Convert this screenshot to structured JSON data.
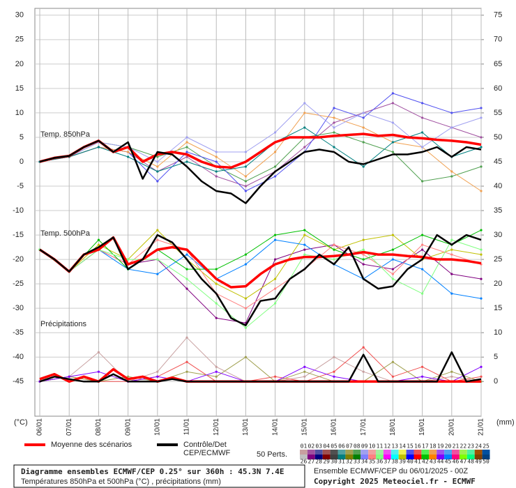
{
  "chart_data": {
    "type": "line",
    "x": [
      0,
      12,
      24,
      36,
      48,
      60,
      72,
      84,
      96,
      108,
      120,
      132,
      144,
      156,
      168,
      180,
      192,
      204,
      216,
      228,
      240,
      252,
      264,
      276,
      288,
      300,
      312,
      324,
      336,
      348,
      360
    ],
    "pert_x": [
      0,
      24,
      48,
      72,
      96,
      120,
      144,
      168,
      192,
      216,
      240,
      264,
      288,
      312,
      336,
      360
    ],
    "xlim": [
      -4,
      360
    ],
    "xticks": [
      {
        "value": 0,
        "label": "06/01"
      },
      {
        "value": 24,
        "label": "07/01"
      },
      {
        "value": 48,
        "label": "08/01"
      },
      {
        "value": 72,
        "label": "09/01"
      },
      {
        "value": 96,
        "label": "10/01"
      },
      {
        "value": 120,
        "label": "11/01"
      },
      {
        "value": 144,
        "label": "12/01"
      },
      {
        "value": 168,
        "label": "13/01"
      },
      {
        "value": 192,
        "label": "14/01"
      },
      {
        "value": 216,
        "label": "15/01"
      },
      {
        "value": 240,
        "label": "16/01"
      },
      {
        "value": 264,
        "label": "17/01"
      },
      {
        "value": 288,
        "label": "18/01"
      },
      {
        "value": 312,
        "label": "19/01"
      },
      {
        "value": 336,
        "label": "20/01"
      },
      {
        "value": 360,
        "label": "21/01"
      }
    ],
    "ylim": [
      -52.1,
      31.4
    ],
    "yticks": [
      -45,
      -40,
      -35,
      -30,
      -25,
      -20,
      -15,
      -10,
      -5,
      0,
      5,
      10,
      15,
      20,
      25,
      30
    ],
    "y2lim": [
      -7.1,
      76.4
    ],
    "y2ticks": [
      0,
      5,
      10,
      15,
      20,
      25,
      30,
      35,
      40,
      45,
      50,
      55,
      60,
      65,
      70,
      75
    ],
    "ylabel": "(°C)",
    "y2label": "(mm)",
    "grid": true,
    "mean_label": "Moyenne des scénarios",
    "mean_color": "#ff0000",
    "control_label": [
      "Contrôle/Det",
      "CEP/ECMWF"
    ],
    "control_color": "#000000",
    "perts_label": "50 Perts.",
    "perts": [
      {
        "label": "01",
        "color": "#c8a0a0"
      },
      {
        "label": "02",
        "color": "#a050a0"
      },
      {
        "label": "03",
        "color": "#5050a0"
      },
      {
        "label": "04",
        "color": "#a05050"
      },
      {
        "label": "05",
        "color": "#505050"
      },
      {
        "label": "06",
        "color": "#50a0a0"
      },
      {
        "label": "07",
        "color": "#a0a050"
      },
      {
        "label": "08",
        "color": "#50a050"
      },
      {
        "label": "09",
        "color": "#a0a0f0"
      },
      {
        "label": "10",
        "color": "#f0a0a0"
      },
      {
        "label": "11",
        "color": "#a0f0a0"
      },
      {
        "label": "12",
        "color": "#f050f0"
      },
      {
        "label": "13",
        "color": "#50f0f0"
      },
      {
        "label": "14",
        "color": "#f0f050"
      },
      {
        "label": "15",
        "color": "#5050f0"
      },
      {
        "label": "16",
        "color": "#f05050"
      },
      {
        "label": "17",
        "color": "#50f050"
      },
      {
        "label": "18",
        "color": "#f0a050"
      },
      {
        "label": "19",
        "color": "#a050f0"
      },
      {
        "label": "20",
        "color": "#50a0f0"
      },
      {
        "label": "21",
        "color": "#f050a0"
      },
      {
        "label": "22",
        "color": "#a0f050"
      },
      {
        "label": "23",
        "color": "#50f0a0"
      },
      {
        "label": "24",
        "color": "#a05000"
      },
      {
        "label": "25",
        "color": "#0050a0"
      },
      {
        "label": "26",
        "color": "#c0c0c0"
      },
      {
        "label": "27",
        "color": "#800080"
      },
      {
        "label": "28",
        "color": "#000080"
      },
      {
        "label": "29",
        "color": "#800000"
      },
      {
        "label": "30",
        "color": "#404040"
      },
      {
        "label": "31",
        "color": "#008080"
      },
      {
        "label": "32",
        "color": "#808000"
      },
      {
        "label": "33",
        "color": "#008000"
      },
      {
        "label": "34",
        "color": "#8080ff"
      },
      {
        "label": "35",
        "color": "#ff8080"
      },
      {
        "label": "36",
        "color": "#80ff80"
      },
      {
        "label": "37",
        "color": "#ff00ff"
      },
      {
        "label": "38",
        "color": "#00ffff"
      },
      {
        "label": "39",
        "color": "#c0c000"
      },
      {
        "label": "40",
        "color": "#0000ff"
      },
      {
        "label": "41",
        "color": "#ff0000"
      },
      {
        "label": "42",
        "color": "#00c000"
      },
      {
        "label": "43",
        "color": "#ff8000"
      },
      {
        "label": "44",
        "color": "#8000ff"
      },
      {
        "label": "45",
        "color": "#0080ff"
      },
      {
        "label": "46",
        "color": "#ff0080"
      },
      {
        "label": "47",
        "color": "#80ff00"
      },
      {
        "label": "48",
        "color": "#00ff80"
      },
      {
        "label": "49",
        "color": "#804000"
      },
      {
        "label": "50",
        "color": "#004080"
      }
    ],
    "panels": [
      {
        "label": "Temp. 850hPa",
        "axis": "y",
        "mean": [
          0,
          0.8,
          1.2,
          3,
          4.3,
          2,
          3,
          0,
          1.5,
          2,
          1.5,
          0,
          -1,
          -1.2,
          0,
          2,
          4,
          5,
          5,
          5,
          5.3,
          5.5,
          5.7,
          5.3,
          5.5,
          5,
          4.8,
          4.5,
          4.3,
          4,
          3.5
        ],
        "control": [
          0,
          0.8,
          1.2,
          3,
          4.3,
          2,
          4,
          -3.5,
          2,
          1.5,
          -1,
          -4,
          -6,
          -6.5,
          -8.5,
          -5,
          -2,
          0,
          2,
          2.5,
          2,
          0,
          -0.5,
          0.5,
          1.5,
          1.5,
          2,
          3,
          1,
          3,
          2.5
        ],
        "perturbations": [
          {
            "color": "#a050a0",
            "values": [
              0,
              1,
              3,
              2,
              -2,
              1,
              -3,
              -5,
              -2,
              3,
              8,
              10,
              12,
              9,
              7,
              5
            ]
          },
          {
            "color": "#50a050",
            "values": [
              0,
              1,
              4,
              3,
              1,
              3,
              -1,
              -4,
              -1,
              5,
              6,
              4,
              2,
              -4,
              -3,
              -1
            ]
          },
          {
            "color": "#5050f0",
            "values": [
              0,
              1,
              3,
              2,
              -4,
              2,
              0,
              -6,
              -3,
              2,
              11,
              9,
              14,
              12,
              10,
              11
            ]
          },
          {
            "color": "#f0a050",
            "values": [
              0,
              1,
              3,
              2,
              -1,
              4,
              1,
              -3,
              2,
              10,
              9,
              7,
              4,
              3,
              -2,
              -6
            ]
          },
          {
            "color": "#a0a0f0",
            "values": [
              0,
              1,
              4,
              3,
              0,
              5,
              2,
              2,
              6,
              12,
              7,
              10,
              8,
              3,
              7,
              9
            ]
          },
          {
            "color": "#008080",
            "values": [
              0,
              1,
              3,
              1,
              -2,
              0,
              -2,
              -1,
              4,
              7,
              3,
              -1,
              4,
              6,
              1,
              3
            ]
          }
        ]
      },
      {
        "label": "Temp. 500hPa",
        "axis": "y",
        "mean": [
          -18,
          -20,
          -22.5,
          -19,
          -18,
          -15.5,
          -21,
          -20,
          -18,
          -17.5,
          -18,
          -21,
          -24,
          -25.7,
          -25.5,
          -23,
          -21,
          -20,
          -19.5,
          -19.5,
          -19.3,
          -19,
          -18.5,
          -19,
          -19,
          -19.3,
          -19.5,
          -20,
          -20,
          -20.3,
          -20.8
        ],
        "control": [
          -18,
          -20,
          -22.5,
          -19,
          -17.5,
          -15.5,
          -22,
          -20,
          -15,
          -16.5,
          -20,
          -24,
          -27,
          -32,
          -33.5,
          -28.5,
          -28,
          -24,
          -22,
          -19,
          -21,
          -17.5,
          -24,
          -26,
          -25.5,
          -22,
          -20,
          -15,
          -17,
          -15,
          -16
        ],
        "perturbations": [
          {
            "color": "#800080",
            "values": [
              -18,
              -22.5,
              -18,
              -21,
              -20,
              -26,
              -32,
              -33,
              -20,
              -18,
              -17,
              -21,
              -22,
              -18,
              -23,
              -24
            ]
          },
          {
            "color": "#c0c000",
            "values": [
              -18,
              -22.5,
              -17,
              -20,
              -14,
              -20,
              -25,
              -28,
              -24,
              -15,
              -18,
              -16,
              -15,
              -20,
              -18,
              -19
            ]
          },
          {
            "color": "#0080ff",
            "values": [
              -18,
              -22.5,
              -18,
              -22,
              -23,
              -19,
              -24,
              -21,
              -16,
              -17,
              -21,
              -24,
              -20,
              -22,
              -27,
              -28
            ]
          },
          {
            "color": "#ff8080",
            "values": [
              -18,
              -22.5,
              -18,
              -21,
              -16,
              -18,
              -27,
              -30,
              -26,
              -22,
              -17,
              -19,
              -23,
              -17,
              -19,
              -21
            ]
          },
          {
            "color": "#00c000",
            "values": [
              -18,
              -22.5,
              -16,
              -22,
              -18,
              -22,
              -22,
              -19,
              -15,
              -14,
              -18,
              -20,
              -18,
              -15,
              -17,
              -14
            ]
          },
          {
            "color": "#80ff80",
            "values": [
              -18,
              -22.5,
              -18,
              -20,
              -20,
              -24,
              -29,
              -34,
              -29,
              -19,
              -20,
              -18,
              -24,
              -27,
              -16,
              -18
            ]
          }
        ]
      },
      {
        "label": "Précipitations",
        "axis": "y2",
        "mean": [
          0.5,
          1.5,
          0,
          1,
          0,
          2.5,
          0.5,
          1,
          0,
          0.8,
          0,
          0,
          0,
          0,
          0,
          0,
          0,
          0,
          0,
          0,
          0,
          0,
          0,
          0,
          0,
          0,
          0,
          0,
          0,
          0,
          0
        ],
        "control": [
          0,
          1,
          0.5,
          0,
          0,
          1.5,
          0,
          0,
          0,
          0.5,
          0,
          0,
          0,
          0,
          0,
          0,
          0,
          0,
          0,
          0,
          0,
          0,
          5.5,
          0,
          0,
          0,
          0,
          0,
          6,
          0,
          0.5
        ],
        "perturbations": [
          {
            "color": "#c8a0a0",
            "values": [
              0,
              1,
              6,
              0,
              2,
              9,
              3,
              0,
              0,
              1,
              5,
              2,
              0,
              0,
              1,
              0
            ]
          },
          {
            "color": "#f05050",
            "values": [
              0,
              1,
              0,
              0,
              1,
              4,
              0,
              0,
              1,
              0,
              2,
              7,
              1,
              3,
              0,
              1
            ]
          },
          {
            "color": "#a0a050",
            "values": [
              0,
              1,
              0,
              1,
              0,
              2,
              1,
              5,
              0,
              2,
              0,
              0,
              4,
              0,
              2,
              0
            ]
          },
          {
            "color": "#8000ff",
            "values": [
              0,
              1,
              2,
              0,
              1,
              0,
              2,
              0,
              0,
              3,
              1,
              0,
              0,
              1,
              0,
              3
            ]
          }
        ]
      }
    ],
    "footer_title": "Diagramme ensembles ECMWF/CEP 0.25° sur 360h : 45.3N 7.4E",
    "footer_subtitle": "Températures 850hPa et 500hPa (°C) , précipitations (mm)",
    "run_label": "Ensemble ECMWF/CEP du 06/01/2025 - 00Z",
    "copyright": "Copyright 2025 Meteociel.fr - ECMWF"
  }
}
